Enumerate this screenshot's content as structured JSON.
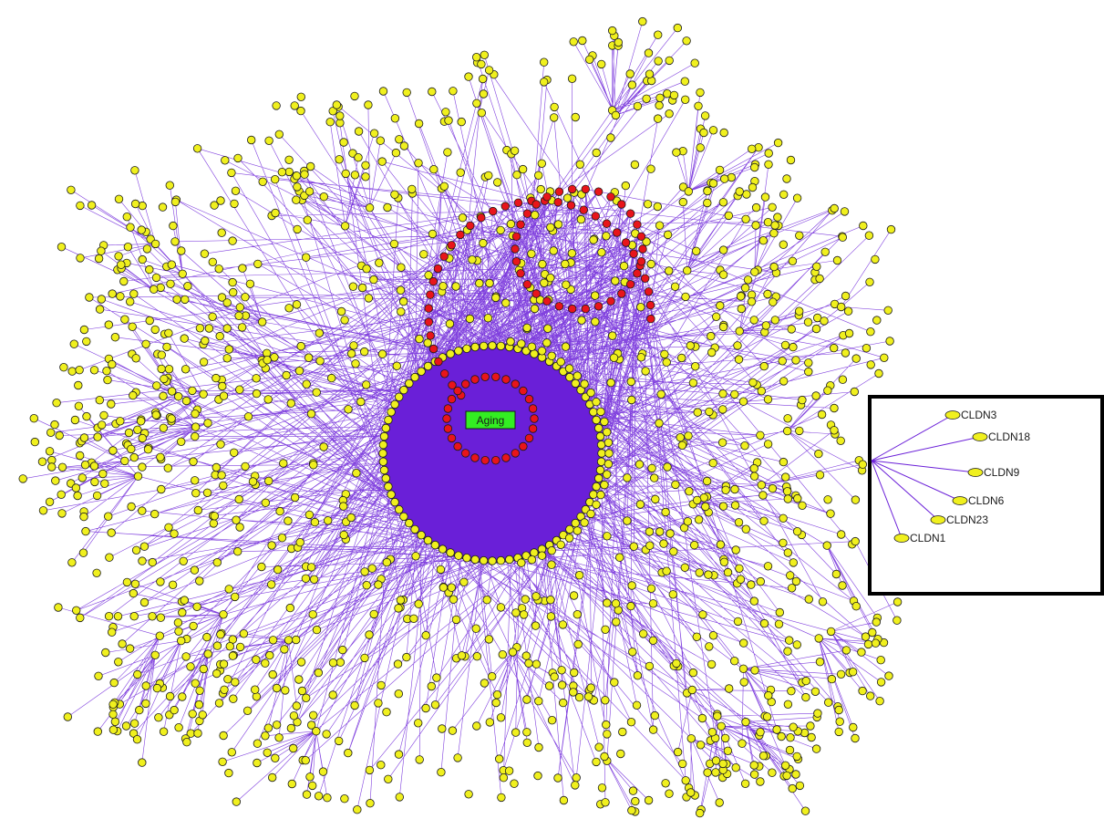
{
  "diagram": {
    "center_label": "Aging",
    "inset_labels": [
      "CLDN3",
      "CLDN18",
      "CLDN9",
      "CLDN6",
      "CLDN23",
      "CLDN1"
    ]
  },
  "colors": {
    "background": "#ffffff",
    "edge": "#6a1fd8",
    "hub_fill": "#6a1fd8",
    "peripheral_node": "#f0f01e",
    "highlight_node": "#e8151b",
    "node_stroke": "#1a1a1a",
    "center_box": "#33ee22",
    "inset_border": "#000000"
  }
}
